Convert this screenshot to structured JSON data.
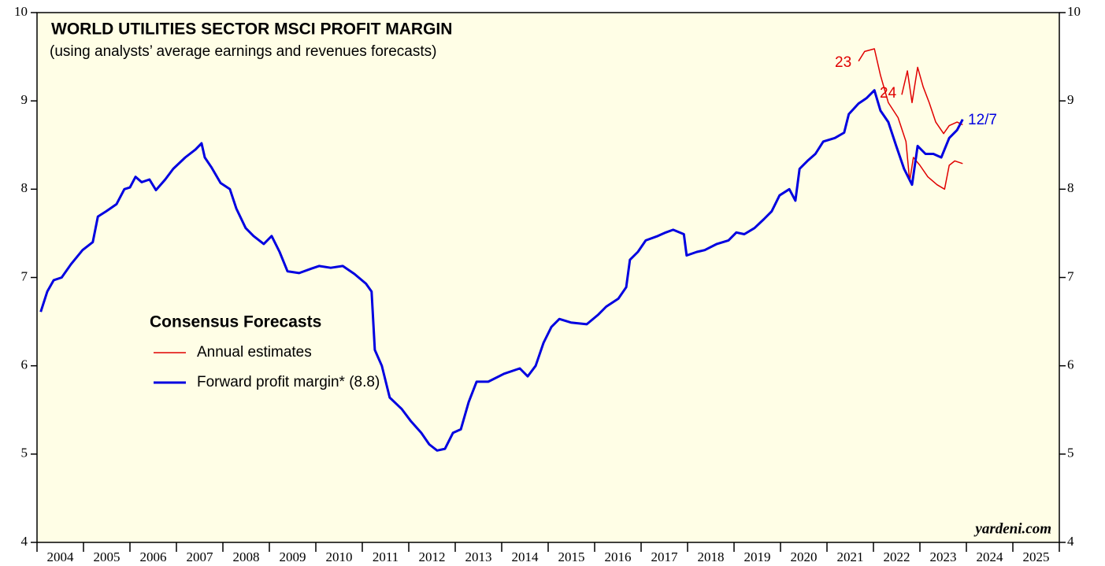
{
  "chart_data": {
    "type": "line",
    "title": "WORLD UTILITIES SECTOR MSCI PROFIT MARGIN",
    "subtitle": "(using analysts’ average earnings and revenues forecasts)",
    "legend_title": "Consensus Forecasts",
    "source": "yardeni.com",
    "background": "#fffee6",
    "xlim": [
      2004,
      2026
    ],
    "xticks": [
      2004,
      2005,
      2006,
      2007,
      2008,
      2009,
      2010,
      2011,
      2012,
      2013,
      2014,
      2015,
      2016,
      2017,
      2018,
      2019,
      2020,
      2021,
      2022,
      2023,
      2024,
      2025,
      2026
    ],
    "categories": [
      "2004",
      "2005",
      "2006",
      "2007",
      "2008",
      "2009",
      "2010",
      "2011",
      "2012",
      "2013",
      "2014",
      "2015",
      "2016",
      "2017",
      "2018",
      "2019",
      "2020",
      "2021",
      "2022",
      "2023",
      "2024",
      "2025"
    ],
    "ylim": [
      4,
      10
    ],
    "yticks": [
      4,
      5,
      6,
      7,
      8,
      9,
      10
    ],
    "y2lim": [
      4,
      10
    ],
    "y2ticks": [
      4,
      5,
      6,
      7,
      8,
      9,
      10
    ],
    "annotations": [
      {
        "text": "23",
        "color": "#e00000"
      },
      {
        "text": "24",
        "color": "#e00000"
      },
      {
        "text": "12/7",
        "color": "#0000e0"
      }
    ],
    "series": [
      {
        "name": "Annual estimates",
        "color": "#e00000",
        "width": 1.5,
        "x": [
          2021.68,
          2021.81,
          2022.02,
          2022.15,
          2022.32,
          2022.53,
          2022.7,
          2022.78,
          2022.86,
          2023.0,
          2023.17,
          2023.37,
          2023.53,
          2023.63,
          2023.75,
          2023.92,
          null,
          2022.61,
          2022.73,
          2022.83,
          2022.95,
          2023.07,
          2023.2,
          2023.34,
          2023.51,
          2023.63,
          2023.8,
          2023.92
        ],
        "values": [
          9.45,
          9.56,
          9.59,
          9.29,
          8.98,
          8.81,
          8.54,
          8.09,
          8.36,
          8.27,
          8.14,
          8.05,
          8.0,
          8.27,
          8.32,
          8.29,
          null,
          9.07,
          9.34,
          8.98,
          9.38,
          9.16,
          8.98,
          8.76,
          8.63,
          8.72,
          8.76,
          8.73
        ]
      },
      {
        "name": "Forward profit margin* (8.8)",
        "color": "#0000e0",
        "width": 3,
        "x": [
          2004.08,
          2004.22,
          2004.36,
          2004.53,
          2004.73,
          2004.98,
          2005.2,
          2005.31,
          2005.49,
          2005.71,
          2005.88,
          2006.0,
          2006.12,
          2006.25,
          2006.42,
          2006.56,
          2006.76,
          2006.93,
          2007.19,
          2007.41,
          2007.54,
          2007.61,
          2007.75,
          2007.95,
          2008.15,
          2008.29,
          2008.49,
          2008.66,
          2008.88,
          2009.05,
          2009.22,
          2009.39,
          2009.64,
          2009.9,
          2010.07,
          2010.32,
          2010.58,
          2010.83,
          2011.08,
          2011.2,
          2011.27,
          2011.42,
          2011.59,
          2011.85,
          2012.05,
          2012.27,
          2012.44,
          2012.61,
          2012.78,
          2012.95,
          2013.12,
          2013.29,
          2013.46,
          2013.71,
          2014.05,
          2014.39,
          2014.56,
          2014.73,
          2014.9,
          2015.07,
          2015.24,
          2015.49,
          2015.83,
          2016.08,
          2016.25,
          2016.51,
          2016.68,
          2016.76,
          2016.93,
          2017.1,
          2017.36,
          2017.53,
          2017.69,
          2017.92,
          2017.98,
          2018.2,
          2018.37,
          2018.63,
          2018.88,
          2019.05,
          2019.22,
          2019.44,
          2019.64,
          2019.81,
          2019.98,
          2020.19,
          2020.32,
          2020.41,
          2020.58,
          2020.75,
          2020.92,
          2021.17,
          2021.37,
          2021.47,
          2021.68,
          2021.85,
          2022.02,
          2022.15,
          2022.32,
          2022.49,
          2022.66,
          2022.83,
          2022.95,
          2023.12,
          2023.29,
          2023.46,
          2023.63,
          2023.8,
          2023.92
        ],
        "values": [
          6.61,
          6.84,
          6.97,
          7.0,
          7.15,
          7.31,
          7.4,
          7.69,
          7.75,
          7.83,
          8.0,
          8.02,
          8.14,
          8.08,
          8.11,
          7.99,
          8.11,
          8.23,
          8.36,
          8.45,
          8.52,
          8.36,
          8.25,
          8.07,
          8.0,
          7.78,
          7.56,
          7.47,
          7.38,
          7.47,
          7.29,
          7.07,
          7.05,
          7.1,
          7.13,
          7.11,
          7.13,
          7.04,
          6.93,
          6.84,
          6.18,
          6.0,
          5.64,
          5.51,
          5.37,
          5.24,
          5.11,
          5.04,
          5.06,
          5.24,
          5.28,
          5.59,
          5.82,
          5.82,
          5.91,
          5.97,
          5.88,
          6.0,
          6.26,
          6.44,
          6.53,
          6.49,
          6.47,
          6.58,
          6.67,
          6.76,
          6.89,
          7.2,
          7.29,
          7.42,
          7.47,
          7.51,
          7.54,
          7.49,
          7.25,
          7.29,
          7.31,
          7.38,
          7.42,
          7.51,
          7.49,
          7.56,
          7.66,
          7.75,
          7.93,
          8.0,
          7.87,
          8.23,
          8.32,
          8.4,
          8.54,
          8.58,
          8.64,
          8.85,
          8.97,
          9.03,
          9.12,
          8.89,
          8.76,
          8.49,
          8.23,
          8.05,
          8.49,
          8.4,
          8.4,
          8.36,
          8.58,
          8.67,
          8.79
        ]
      }
    ]
  }
}
